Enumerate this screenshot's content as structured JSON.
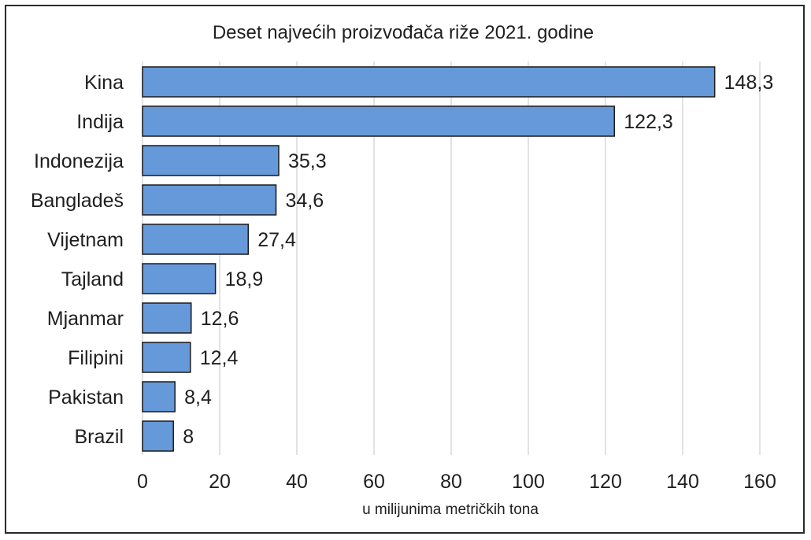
{
  "chart_data": {
    "type": "bar",
    "orientation": "horizontal",
    "title": "Deset najvećih proizvođača riže 2021. godine",
    "xlabel": "u milijunima metričkih tona",
    "ylabel": "",
    "xlim": [
      0,
      160
    ],
    "ticks": [
      0,
      20,
      40,
      60,
      80,
      100,
      120,
      140,
      160
    ],
    "grid": "vertical",
    "legend": "none",
    "categories": [
      "Kina",
      "Indija",
      "Indonezija",
      "Bangladeš",
      "Vijetnam",
      "Tajland",
      "Mjanmar",
      "Filipini",
      "Pakistan",
      "Brazil"
    ],
    "values": [
      148.3,
      122.3,
      35.3,
      34.6,
      27.4,
      18.9,
      12.6,
      12.4,
      8.4,
      8
    ],
    "value_labels": [
      "148,3",
      "122,3",
      "35,3",
      "34,6",
      "27,4",
      "18,9",
      "12,6",
      "12,4",
      "8,4",
      "8"
    ],
    "bar_color": "#6699d9",
    "bar_outline": "#1a1a1a"
  }
}
